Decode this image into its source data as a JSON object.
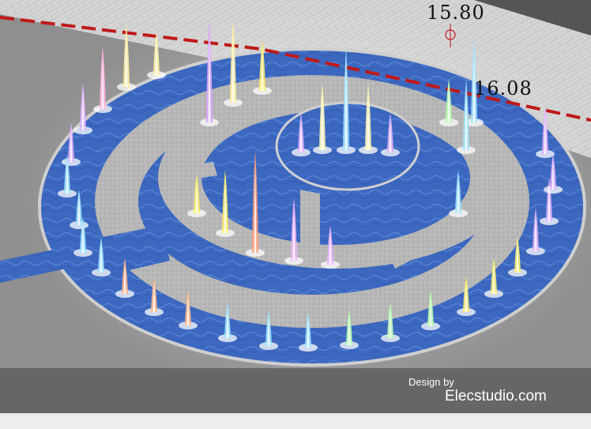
{
  "elevations": {
    "upper": "15.80",
    "lower": "16.08"
  },
  "credit": {
    "line1": "Design by",
    "line2": "Elecstudio.com"
  },
  "colors": {
    "water": "#3f6fc6",
    "paving": "#b9b9b9",
    "ground": "#8e8e8e",
    "boundary": "#c01818",
    "jet_palette": [
      "#d9a6ff",
      "#fff4a0",
      "#f7e76a",
      "#ffb88a",
      "#9fe3ff",
      "#b7ffb0",
      "#ff9f7a"
    ]
  },
  "fountain_jets": [
    {
      "color": "#d9a6ff",
      "h": 132
    },
    {
      "color": "#fff0a0",
      "h": 105
    },
    {
      "color": "#fff06a",
      "h": 65
    },
    {
      "color": "#fff0a0",
      "h": 55
    },
    {
      "color": "#fff0a0",
      "h": 80
    },
    {
      "color": "#ffb0e0",
      "h": 80
    },
    {
      "color": "#9fe3ff",
      "h": 130
    },
    {
      "color": "#fff6b0",
      "h": 85
    },
    {
      "color": "#fff6b0",
      "h": 85
    },
    {
      "color": "#e0b0ff",
      "h": 50
    },
    {
      "color": "#e0b0ff",
      "h": 50
    },
    {
      "color": "#b7ffb0",
      "h": 55
    },
    {
      "color": "#9fe3ff",
      "h": 105
    },
    {
      "color": "#9fe3ff",
      "h": 90
    },
    {
      "color": "#e0b0ff",
      "h": 60
    },
    {
      "color": "#9fe3ff",
      "h": 55
    },
    {
      "color": "#ff9f7a",
      "h": 130
    },
    {
      "color": "#fff06a",
      "h": 80
    },
    {
      "color": "#fff06a",
      "h": 50
    },
    {
      "color": "#f0b0ff",
      "h": 80
    },
    {
      "color": "#f0b0ff",
      "h": 50
    },
    {
      "color": "#e0b0ff",
      "h": 60
    },
    {
      "color": "#e0b0ff",
      "h": 50
    },
    {
      "color": "#9fe3ff",
      "h": 50
    },
    {
      "color": "#9fe3ff",
      "h": 45
    },
    {
      "color": "#9fe3ff",
      "h": 45
    },
    {
      "color": "#9fe3ff",
      "h": 45
    },
    {
      "color": "#ffb88a",
      "h": 45
    },
    {
      "color": "#ffb88a",
      "h": 45
    },
    {
      "color": "#ffb88a",
      "h": 45
    },
    {
      "color": "#9fe3ff",
      "h": 45
    },
    {
      "color": "#9fe3ff",
      "h": 45
    },
    {
      "color": "#9fe3ff",
      "h": 45
    },
    {
      "color": "#b7ffb0",
      "h": 45
    },
    {
      "color": "#b7ffb0",
      "h": 45
    },
    {
      "color": "#b7ffb0",
      "h": 45
    },
    {
      "color": "#fff06a",
      "h": 45
    },
    {
      "color": "#fff06a",
      "h": 45
    },
    {
      "color": "#fff06a",
      "h": 45
    },
    {
      "color": "#e0b0ff",
      "h": 55
    },
    {
      "color": "#e0b0ff",
      "h": 55
    },
    {
      "color": "#e0b0ff",
      "h": 45
    }
  ]
}
